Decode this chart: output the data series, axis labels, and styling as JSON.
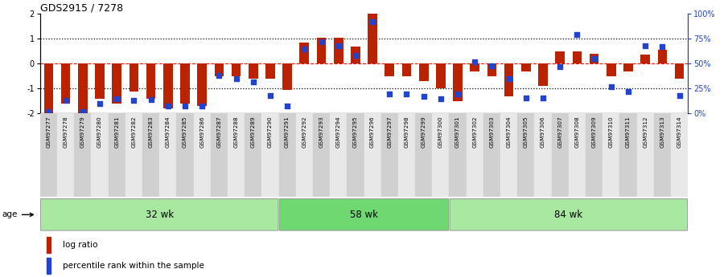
{
  "title": "GDS2915 / 7278",
  "samples": [
    "GSM97277",
    "GSM97278",
    "GSM97279",
    "GSM97280",
    "GSM97281",
    "GSM97282",
    "GSM97283",
    "GSM97284",
    "GSM97285",
    "GSM97286",
    "GSM97287",
    "GSM97288",
    "GSM97289",
    "GSM97290",
    "GSM97291",
    "GSM97292",
    "GSM97293",
    "GSM97294",
    "GSM97295",
    "GSM97296",
    "GSM97297",
    "GSM97298",
    "GSM97299",
    "GSM97300",
    "GSM97301",
    "GSM97302",
    "GSM97303",
    "GSM97304",
    "GSM97305",
    "GSM97306",
    "GSM97307",
    "GSM97308",
    "GSM97309",
    "GSM97310",
    "GSM97311",
    "GSM97312",
    "GSM97313",
    "GSM97314"
  ],
  "log_ratio": [
    -2.0,
    -1.6,
    -2.0,
    -1.4,
    -1.6,
    -1.1,
    -1.4,
    -1.8,
    -1.6,
    -1.7,
    -0.5,
    -0.5,
    -0.6,
    -0.6,
    -1.05,
    0.85,
    1.05,
    1.05,
    0.7,
    2.0,
    -0.5,
    -0.5,
    -0.7,
    -1.0,
    -1.5,
    -0.3,
    -0.5,
    -1.3,
    -0.3,
    -0.9,
    0.5,
    0.5,
    0.4,
    -0.5,
    -0.3,
    0.35,
    0.55,
    -0.6
  ],
  "percentile": [
    2,
    13,
    2,
    10,
    15,
    13,
    14,
    8,
    8,
    8,
    38,
    35,
    32,
    18,
    8,
    65,
    72,
    68,
    58,
    92,
    20,
    20,
    17,
    15,
    20,
    52,
    48,
    35,
    16,
    16,
    47,
    79,
    55,
    27,
    22,
    68,
    67,
    18
  ],
  "groups": [
    {
      "label": "32 wk",
      "start": 0,
      "end": 14,
      "color": "#a8e8a0"
    },
    {
      "label": "58 wk",
      "start": 14,
      "end": 24,
      "color": "#70d870"
    },
    {
      "label": "84 wk",
      "start": 24,
      "end": 38,
      "color": "#a8e8a0"
    }
  ],
  "bar_color": "#bb2200",
  "dot_color": "#2244cc",
  "left_ylim": [
    -2.0,
    2.0
  ],
  "right_ylim": [
    0,
    100
  ],
  "left_yticks": [
    -2,
    -1,
    0,
    1,
    2
  ],
  "right_yticks": [
    0,
    25,
    50,
    75,
    100
  ],
  "right_yticklabels": [
    "0%",
    "25%",
    "50%",
    "75%",
    "100%"
  ],
  "age_label": "age",
  "legend_log_ratio": "log ratio",
  "legend_percentile": "percentile rank within the sample",
  "tick_bg_even": "#d0d0d0",
  "tick_bg_odd": "#e8e8e8"
}
